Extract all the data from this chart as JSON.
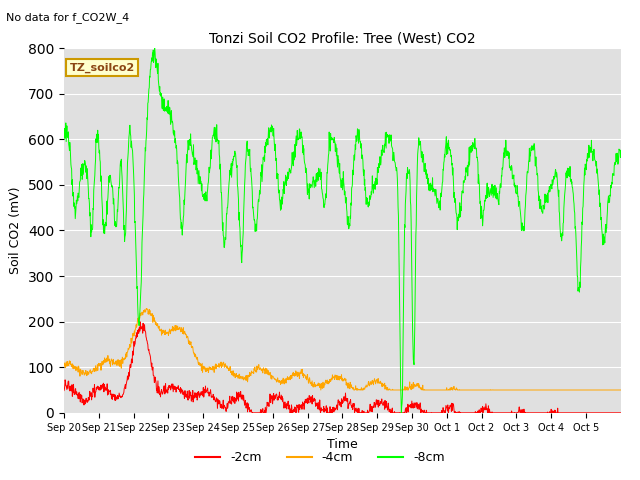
{
  "title": "Tonzi Soil CO2 Profile: Tree (West) CO2",
  "subtitle": "No data for f_CO2W_4",
  "ylabel": "Soil CO2 (mV)",
  "xlabel": "Time",
  "ylim": [
    0,
    800
  ],
  "bg_color": "#e0e0e0",
  "fig_color": "#ffffff",
  "legend_label": "TZ_soilco2",
  "series_labels": [
    "-2cm",
    "-4cm",
    "-8cm"
  ],
  "series_colors": [
    "#ff0000",
    "#ffa500",
    "#00ff00"
  ],
  "xtick_labels": [
    "Sep 20",
    "Sep 21",
    "Sep 22",
    "Sep 23",
    "Sep 24",
    "Sep 25",
    "Sep 26",
    "Sep 27",
    "Sep 28",
    "Sep 29",
    "Sep 30",
    "Oct 1",
    "Oct 2",
    "Oct 3",
    "Oct 4",
    "Oct 5"
  ],
  "ytick_labels": [
    0,
    100,
    200,
    300,
    400,
    500,
    600,
    700,
    800
  ]
}
